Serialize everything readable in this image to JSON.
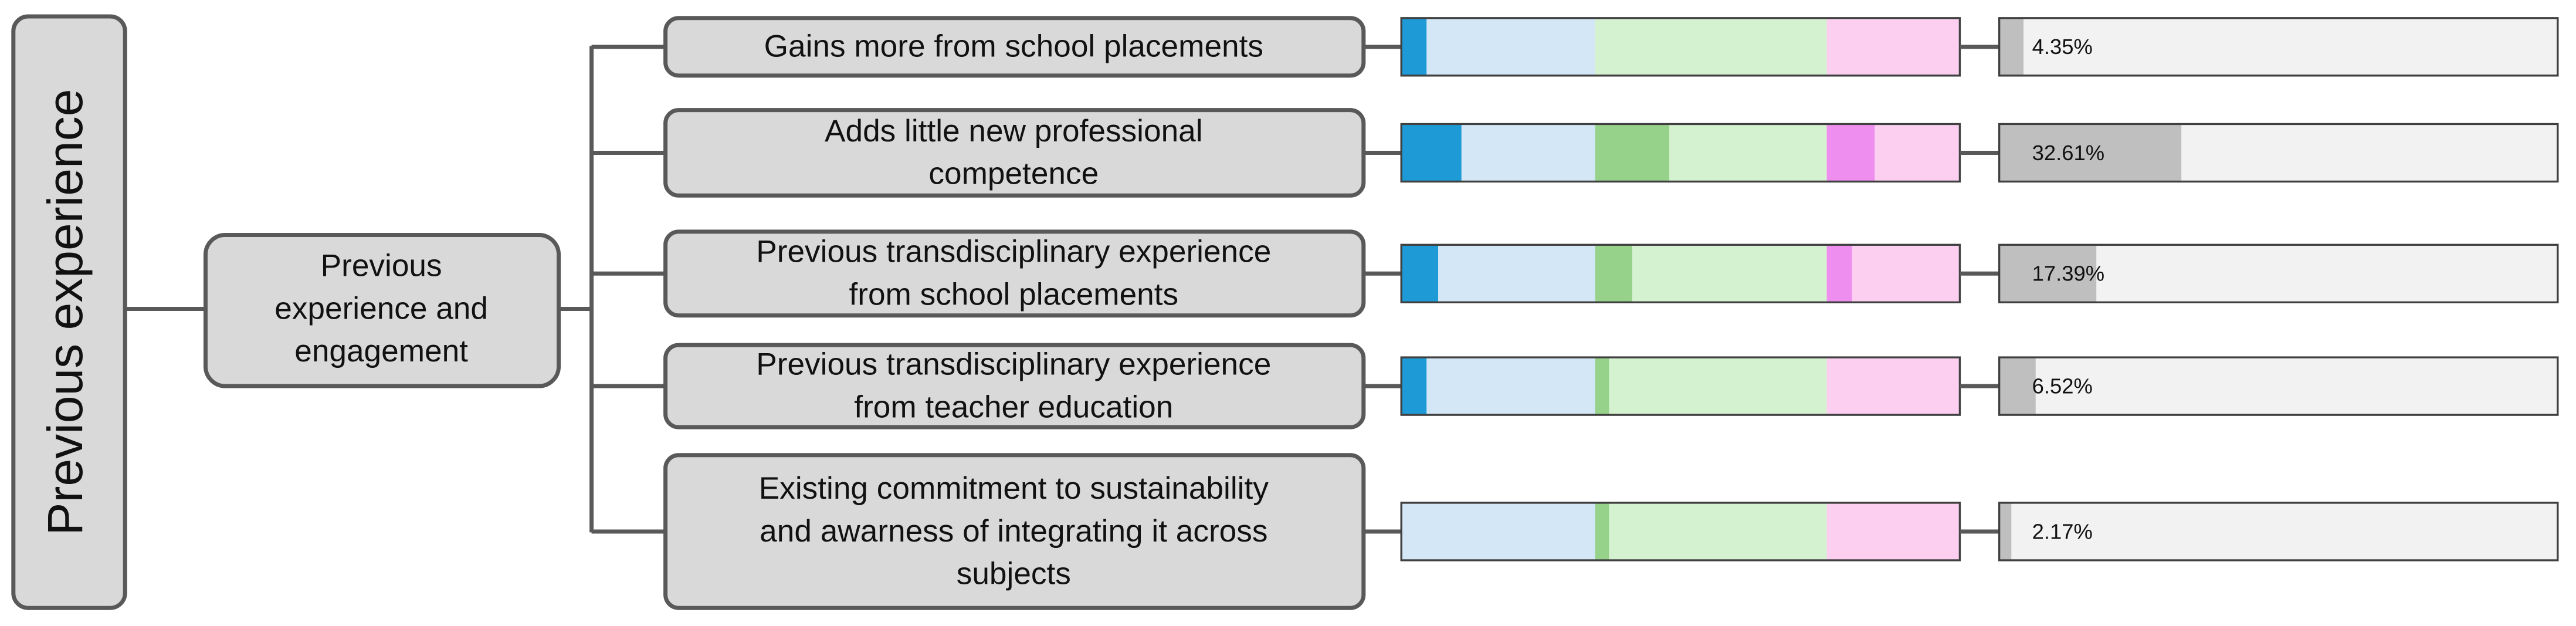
{
  "title": "Previous experience",
  "group": [
    "Previous",
    "experience and",
    "engagement"
  ],
  "share_scale": [
    0,
    100
  ],
  "items": [
    {
      "label": [
        "Gains more from school placements"
      ],
      "blue": 13,
      "green": 0,
      "pink": 0,
      "share": 4.35,
      "share_label": "4.35%"
    },
    {
      "label": [
        "Adds little new professional",
        "competence"
      ],
      "blue": 31,
      "green": 32,
      "pink": 36,
      "share": 32.61,
      "share_label": "32.61%"
    },
    {
      "label": [
        "Previous transdisciplinary experience",
        "from school placements"
      ],
      "blue": 19,
      "green": 16,
      "pink": 19,
      "share": 17.39,
      "share_label": "17.39%"
    },
    {
      "label": [
        "Previous transdisciplinary experience",
        "from teacher education"
      ],
      "blue": 13,
      "green": 6,
      "pink": 0,
      "share": 6.52,
      "share_label": "6.52%"
    },
    {
      "label": [
        "Existing commitment to sustainability",
        "and awarness of integrating it across",
        "subjects"
      ],
      "blue": 0,
      "green": 6,
      "pink": 0,
      "share": 2.17,
      "share_label": "2.17%"
    }
  ],
  "colors": {
    "blue": [
      "#1e9ad6",
      "#d3e7f6"
    ],
    "green": [
      "#97d28a",
      "#d5f2d0"
    ],
    "pink": [
      "#ee8ff0",
      "#fccff0"
    ],
    "share": [
      "#bfbfbf",
      "#f2f2f2"
    ]
  }
}
